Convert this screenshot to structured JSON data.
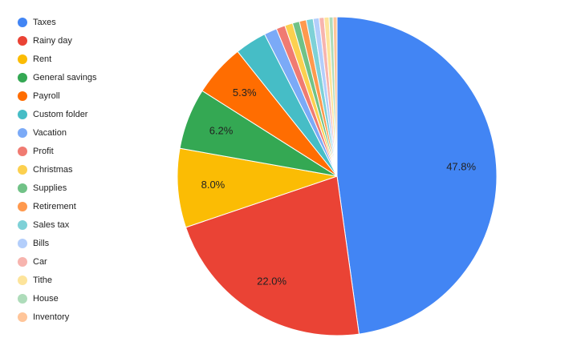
{
  "chart_data": {
    "type": "pie",
    "categories": [
      "Taxes",
      "Rainy day",
      "Rent",
      "General savings",
      "Payroll",
      "Custom folder",
      "Vacation",
      "Profit",
      "Christmas",
      "Supplies",
      "Retirement",
      "Sales tax",
      "Bills",
      "Car",
      "Tithe",
      "House",
      "Inventory"
    ],
    "values": [
      47.8,
      22.0,
      8.0,
      6.2,
      5.3,
      3.2,
      1.3,
      0.9,
      0.8,
      0.7,
      0.7,
      0.7,
      0.6,
      0.5,
      0.5,
      0.4,
      0.4
    ],
    "value_labels": [
      "47.8%",
      "22.0%",
      "8.0%",
      "6.2%",
      "5.3%",
      null,
      null,
      null,
      null,
      null,
      null,
      null,
      null,
      null,
      null,
      null,
      null
    ],
    "colors": [
      "#4285f4",
      "#ea4335",
      "#fbbc04",
      "#34a853",
      "#ff6d01",
      "#46bdc6",
      "#7baaf7",
      "#f07b72",
      "#fcd04f",
      "#71c287",
      "#ff994d",
      "#7ed1d7",
      "#b3cefb",
      "#f7b4ae",
      "#fde49b",
      "#aedcba",
      "#ffc599"
    ],
    "legend": "left"
  }
}
